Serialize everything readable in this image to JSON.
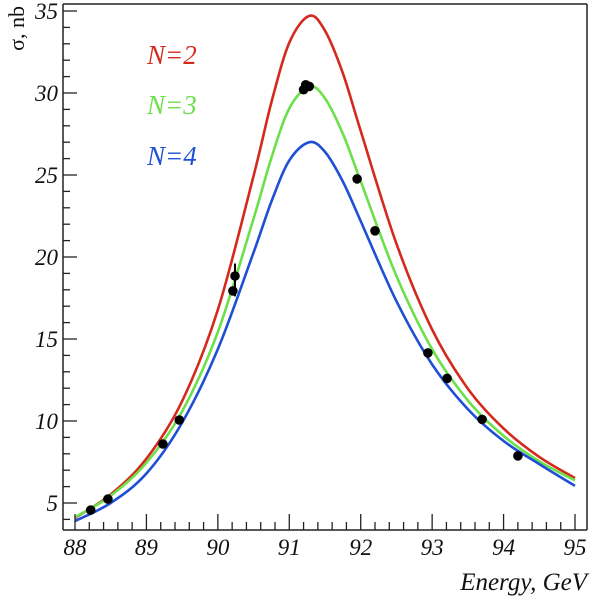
{
  "chart_data": {
    "type": "line",
    "title": "",
    "xlabel": "Energy, GeV",
    "ylabel": "σ, nb",
    "xlim": [
      88,
      95
    ],
    "ylim": [
      3.35,
      35.4
    ],
    "x_ticks": [
      "88",
      "89",
      "90",
      "91",
      "92",
      "93",
      "94",
      "95"
    ],
    "y_ticks": [
      "5",
      "10",
      "15",
      "20",
      "25",
      "30",
      "35"
    ],
    "grid": false,
    "legend_position": "top-left",
    "x": [
      88,
      88.5,
      89,
      89.5,
      90,
      90.5,
      90.75,
      91,
      91.28,
      91.5,
      91.75,
      92,
      92.5,
      93,
      93.5,
      94,
      94.5,
      95
    ],
    "series": [
      {
        "name": "N=2",
        "color": "#d42a1e",
        "values": [
          4.09,
          5.52,
          7.7,
          11.21,
          16.79,
          24.95,
          29.43,
          33.07,
          34.7,
          33.8,
          31.2,
          27.69,
          20.82,
          15.58,
          11.97,
          9.54,
          7.81,
          6.52
        ]
      },
      {
        "name": "N=3",
        "color": "#6ce04a",
        "values": [
          4.13,
          5.44,
          7.45,
          10.58,
          15.44,
          22.34,
          26.05,
          29.06,
          30.4,
          29.67,
          27.51,
          24.62,
          18.85,
          14.38,
          11.25,
          9.09,
          7.54,
          6.38
        ]
      },
      {
        "name": "N=4",
        "color": "#1e4fd4",
        "values": [
          3.9,
          5.0,
          6.8,
          9.9,
          14.39,
          20.28,
          23.38,
          25.89,
          27.0,
          26.41,
          24.6,
          22.19,
          17.31,
          13.45,
          10.72,
          8.78,
          7.37,
          6.05
        ]
      }
    ],
    "measurements": {
      "name": "data",
      "color": "#000000",
      "points": [
        {
          "x": 88.22,
          "y": 4.57
        },
        {
          "x": 88.46,
          "y": 5.24
        },
        {
          "x": 89.23,
          "y": 8.6
        },
        {
          "x": 89.46,
          "y": 10.06
        },
        {
          "x": 90.21,
          "y": 17.93
        },
        {
          "x": 90.24,
          "y": 18.84
        },
        {
          "x": 91.2,
          "y": 30.2
        },
        {
          "x": 91.23,
          "y": 30.5
        },
        {
          "x": 91.28,
          "y": 30.4
        },
        {
          "x": 91.95,
          "y": 24.76
        },
        {
          "x": 92.2,
          "y": 21.6
        },
        {
          "x": 92.94,
          "y": 14.15
        },
        {
          "x": 93.21,
          "y": 12.6
        },
        {
          "x": 93.7,
          "y": 10.1
        },
        {
          "x": 94.2,
          "y": 7.87
        }
      ]
    }
  }
}
